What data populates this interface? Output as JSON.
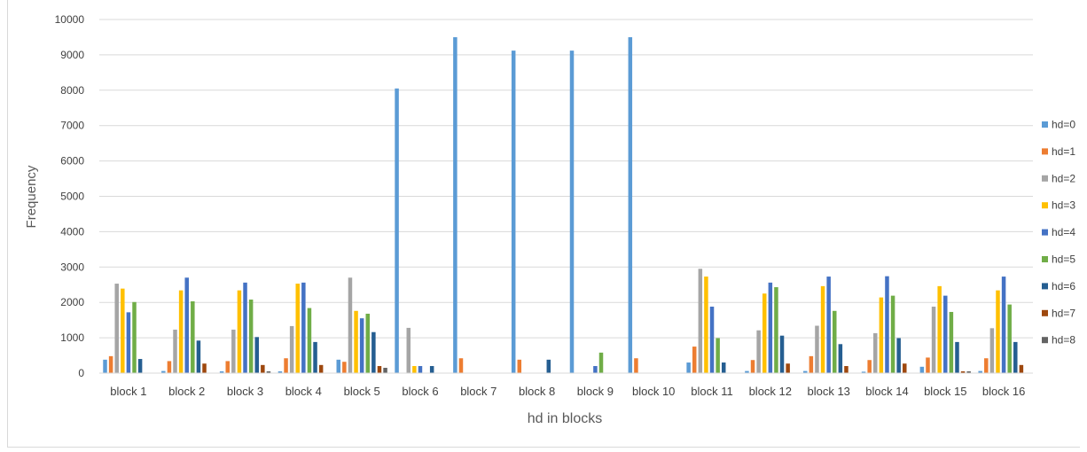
{
  "chart_data": {
    "type": "bar",
    "title": "",
    "xlabel": "hd in blocks",
    "ylabel": "Frequency",
    "ylim": [
      0,
      10000
    ],
    "yticks": [
      0,
      1000,
      2000,
      3000,
      4000,
      5000,
      6000,
      7000,
      8000,
      9000,
      10000
    ],
    "ytick_labels": [
      "0",
      "1000",
      "2000",
      "3000",
      "4000",
      "5000",
      "6000",
      "7000",
      "8000",
      "9000",
      "10000"
    ],
    "grid": true,
    "legend_position": "right",
    "categories": [
      "block 1",
      "block 2",
      "block 3",
      "block 4",
      "block 5",
      "block 6",
      "block 7",
      "block 8",
      "block 9",
      "block 10",
      "block 11",
      "block 12",
      "block 13",
      "block 14",
      "block 15",
      "block 16"
    ],
    "series": [
      {
        "name": "hd=0",
        "color": "#5B9BD5",
        "values": [
          380,
          60,
          50,
          50,
          380,
          8050,
          9500,
          9120,
          9120,
          9500,
          300,
          60,
          60,
          40,
          180,
          60
        ]
      },
      {
        "name": "hd=1",
        "color": "#ED7D31",
        "values": [
          480,
          340,
          340,
          420,
          320,
          0,
          420,
          380,
          0,
          420,
          750,
          370,
          480,
          370,
          440,
          420
        ]
      },
      {
        "name": "hd=2",
        "color": "#A5A5A5",
        "values": [
          2530,
          1230,
          1230,
          1330,
          2700,
          1280,
          0,
          0,
          0,
          0,
          2950,
          1210,
          1340,
          1130,
          1880,
          1270
        ]
      },
      {
        "name": "hd=3",
        "color": "#FFC000",
        "values": [
          2390,
          2340,
          2340,
          2530,
          1760,
          200,
          0,
          0,
          0,
          0,
          2730,
          2250,
          2460,
          2140,
          2460,
          2340
        ]
      },
      {
        "name": "hd=4",
        "color": "#4472C4",
        "values": [
          1720,
          2700,
          2560,
          2560,
          1550,
          200,
          0,
          0,
          200,
          0,
          1880,
          2560,
          2730,
          2740,
          2190,
          2730
        ]
      },
      {
        "name": "hd=5",
        "color": "#70AD47",
        "values": [
          2010,
          2030,
          2080,
          1840,
          1680,
          0,
          0,
          0,
          580,
          0,
          990,
          2430,
          1760,
          2190,
          1730,
          1940
        ]
      },
      {
        "name": "hd=6",
        "color": "#255E91",
        "values": [
          400,
          920,
          1020,
          880,
          1160,
          200,
          0,
          380,
          0,
          0,
          300,
          1060,
          820,
          990,
          880,
          880
        ]
      },
      {
        "name": "hd=7",
        "color": "#9E480E",
        "values": [
          0,
          270,
          230,
          230,
          200,
          0,
          0,
          0,
          0,
          0,
          0,
          270,
          200,
          270,
          50,
          230
        ]
      },
      {
        "name": "hd=8",
        "color": "#636363",
        "values": [
          0,
          0,
          50,
          0,
          150,
          0,
          0,
          0,
          0,
          0,
          0,
          0,
          0,
          0,
          50,
          0
        ]
      }
    ]
  }
}
